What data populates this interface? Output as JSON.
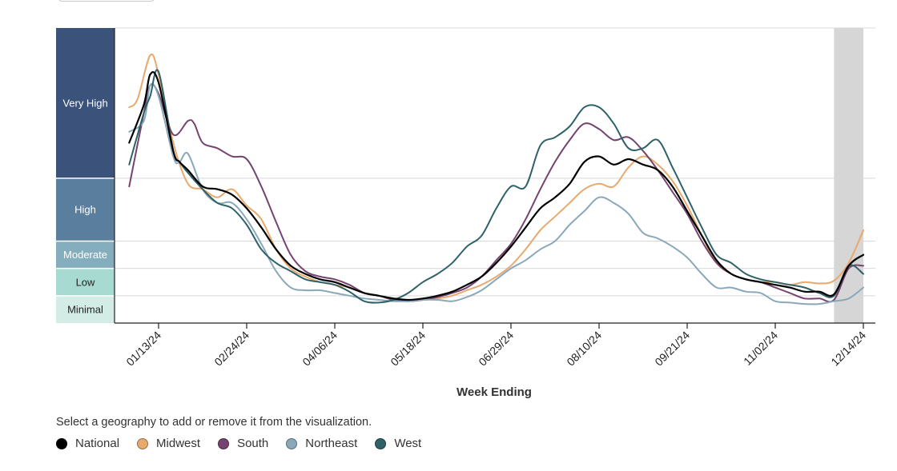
{
  "chart_data": {
    "type": "line",
    "xlabel": "Week Ending",
    "x_ticks": [
      "01/13/24",
      "02/24/24",
      "04/06/24",
      "05/18/24",
      "06/29/24",
      "08/10/24",
      "09/21/24",
      "11/02/24",
      "12/14/24"
    ],
    "x_range": [
      "12/23/23",
      "12/14/24"
    ],
    "levels": [
      {
        "name": "Very High",
        "from": 8,
        "to": 13.5,
        "color": "#3b537a",
        "text_color": "#ffffff"
      },
      {
        "name": "High",
        "from": 5.7,
        "to": 8,
        "color": "#5a7e9e",
        "text_color": "#ffffff"
      },
      {
        "name": "Moderate",
        "from": 4.7,
        "to": 5.7,
        "color": "#84adbd",
        "text_color": "#ffffff"
      },
      {
        "name": "Low",
        "from": 3.7,
        "to": 4.7,
        "color": "#a7dbd2",
        "text_color": "#222222"
      },
      {
        "name": "Minimal",
        "from": 2.7,
        "to": 3.7,
        "color": "#d3ede6",
        "text_color": "#222222"
      }
    ],
    "ylim": [
      2.7,
      13.5
    ],
    "projection_start": "11/30/24",
    "series": [
      {
        "name": "National",
        "color": "#000000",
        "points": [
          [
            "12/30/23",
            9.3
          ],
          [
            "01/06/24",
            10.7
          ],
          [
            "01/09/24",
            11.8
          ],
          [
            "01/13/24",
            11.5
          ],
          [
            "01/20/24",
            9.0
          ],
          [
            "01/23/24",
            8.6
          ],
          [
            "01/27/24",
            8.3
          ],
          [
            "02/03/24",
            7.7
          ],
          [
            "02/10/24",
            7.6
          ],
          [
            "02/17/24",
            7.4
          ],
          [
            "02/24/24",
            6.9
          ],
          [
            "03/02/24",
            6.2
          ],
          [
            "03/09/24",
            5.4
          ],
          [
            "03/16/24",
            4.8
          ],
          [
            "03/23/24",
            4.5
          ],
          [
            "03/30/24",
            4.3
          ],
          [
            "04/06/24",
            4.2
          ],
          [
            "04/13/24",
            4.0
          ],
          [
            "04/20/24",
            3.8
          ],
          [
            "04/27/24",
            3.7
          ],
          [
            "05/04/24",
            3.6
          ],
          [
            "05/11/24",
            3.55
          ],
          [
            "05/18/24",
            3.6
          ],
          [
            "05/25/24",
            3.7
          ],
          [
            "06/01/24",
            3.85
          ],
          [
            "06/08/24",
            4.1
          ],
          [
            "06/15/24",
            4.4
          ],
          [
            "06/22/24",
            4.9
          ],
          [
            "06/29/24",
            5.5
          ],
          [
            "07/06/24",
            6.2
          ],
          [
            "07/13/24",
            6.9
          ],
          [
            "07/20/24",
            7.3
          ],
          [
            "07/27/24",
            7.8
          ],
          [
            "08/03/24",
            8.6
          ],
          [
            "08/10/24",
            8.8
          ],
          [
            "08/17/24",
            8.5
          ],
          [
            "08/24/24",
            8.7
          ],
          [
            "08/31/24",
            8.5
          ],
          [
            "09/07/24",
            8.3
          ],
          [
            "09/14/24",
            7.7
          ],
          [
            "09/21/24",
            6.8
          ],
          [
            "09/28/24",
            5.9
          ],
          [
            "10/05/24",
            5.0
          ],
          [
            "10/12/24",
            4.5
          ],
          [
            "10/19/24",
            4.3
          ],
          [
            "10/26/24",
            4.2
          ],
          [
            "11/02/24",
            4.1
          ],
          [
            "11/09/24",
            4.0
          ],
          [
            "11/16/24",
            3.85
          ],
          [
            "11/23/24",
            3.85
          ],
          [
            "11/30/24",
            3.75
          ],
          [
            "12/07/24",
            4.8
          ],
          [
            "12/14/24",
            5.2
          ]
        ]
      },
      {
        "name": "Midwest",
        "color": "#e8a96e",
        "points": [
          [
            "12/30/23",
            10.6
          ],
          [
            "01/03/24",
            10.9
          ],
          [
            "01/09/24",
            12.5
          ],
          [
            "01/13/24",
            11.8
          ],
          [
            "01/20/24",
            9.3
          ],
          [
            "01/27/24",
            7.8
          ],
          [
            "02/03/24",
            7.6
          ],
          [
            "02/10/24",
            7.3
          ],
          [
            "02/17/24",
            7.6
          ],
          [
            "02/24/24",
            7.0
          ],
          [
            "03/02/24",
            6.5
          ],
          [
            "03/09/24",
            5.4
          ],
          [
            "03/16/24",
            4.7
          ],
          [
            "03/23/24",
            4.4
          ],
          [
            "03/30/24",
            4.2
          ],
          [
            "04/06/24",
            4.1
          ],
          [
            "04/13/24",
            4.0
          ],
          [
            "04/20/24",
            3.8
          ],
          [
            "04/27/24",
            3.7
          ],
          [
            "05/04/24",
            3.6
          ],
          [
            "05/11/24",
            3.55
          ],
          [
            "05/18/24",
            3.55
          ],
          [
            "05/25/24",
            3.6
          ],
          [
            "06/01/24",
            3.7
          ],
          [
            "06/08/24",
            3.9
          ],
          [
            "06/15/24",
            4.1
          ],
          [
            "06/22/24",
            4.4
          ],
          [
            "06/29/24",
            4.8
          ],
          [
            "07/06/24",
            5.4
          ],
          [
            "07/13/24",
            6.1
          ],
          [
            "07/20/24",
            6.6
          ],
          [
            "07/27/24",
            7.1
          ],
          [
            "08/03/24",
            7.6
          ],
          [
            "08/10/24",
            7.8
          ],
          [
            "08/17/24",
            7.7
          ],
          [
            "08/24/24",
            8.4
          ],
          [
            "08/31/24",
            8.8
          ],
          [
            "09/07/24",
            8.5
          ],
          [
            "09/14/24",
            7.9
          ],
          [
            "09/21/24",
            7.0
          ],
          [
            "09/28/24",
            5.9
          ],
          [
            "10/05/24",
            4.9
          ],
          [
            "10/12/24",
            4.5
          ],
          [
            "10/19/24",
            4.3
          ],
          [
            "10/26/24",
            4.2
          ],
          [
            "11/02/24",
            4.2
          ],
          [
            "11/09/24",
            4.1
          ],
          [
            "11/16/24",
            4.2
          ],
          [
            "11/23/24",
            4.15
          ],
          [
            "11/30/24",
            4.25
          ],
          [
            "12/07/24",
            4.9
          ],
          [
            "12/14/24",
            6.1
          ]
        ]
      },
      {
        "name": "South",
        "color": "#74436f",
        "points": [
          [
            "12/30/23",
            7.7
          ],
          [
            "01/06/24",
            10.4
          ],
          [
            "01/09/24",
            11.4
          ],
          [
            "01/13/24",
            11.1
          ],
          [
            "01/20/24",
            9.6
          ],
          [
            "01/27/24",
            10.1
          ],
          [
            "01/30/24",
            10.0
          ],
          [
            "02/03/24",
            9.3
          ],
          [
            "02/10/24",
            9.1
          ],
          [
            "02/17/24",
            8.8
          ],
          [
            "02/24/24",
            8.7
          ],
          [
            "03/02/24",
            7.7
          ],
          [
            "03/09/24",
            6.4
          ],
          [
            "03/16/24",
            5.2
          ],
          [
            "03/23/24",
            4.6
          ],
          [
            "03/30/24",
            4.4
          ],
          [
            "04/06/24",
            4.3
          ],
          [
            "04/13/24",
            4.1
          ],
          [
            "04/20/24",
            3.8
          ],
          [
            "04/27/24",
            3.7
          ],
          [
            "05/04/24",
            3.55
          ],
          [
            "05/11/24",
            3.5
          ],
          [
            "05/18/24",
            3.55
          ],
          [
            "05/25/24",
            3.65
          ],
          [
            "06/01/24",
            3.8
          ],
          [
            "06/08/24",
            4.0
          ],
          [
            "06/15/24",
            4.4
          ],
          [
            "06/22/24",
            5.0
          ],
          [
            "06/29/24",
            5.6
          ],
          [
            "07/06/24",
            6.5
          ],
          [
            "07/13/24",
            7.6
          ],
          [
            "07/20/24",
            8.6
          ],
          [
            "07/27/24",
            9.4
          ],
          [
            "08/03/24",
            10.0
          ],
          [
            "08/10/24",
            9.8
          ],
          [
            "08/17/24",
            9.4
          ],
          [
            "08/24/24",
            9.5
          ],
          [
            "08/31/24",
            9.0
          ],
          [
            "09/07/24",
            8.3
          ],
          [
            "09/14/24",
            7.5
          ],
          [
            "09/21/24",
            6.7
          ],
          [
            "09/28/24",
            5.7
          ],
          [
            "10/05/24",
            4.9
          ],
          [
            "10/12/24",
            4.5
          ],
          [
            "10/19/24",
            4.3
          ],
          [
            "10/26/24",
            4.2
          ],
          [
            "11/02/24",
            4.0
          ],
          [
            "11/09/24",
            3.8
          ],
          [
            "11/16/24",
            3.6
          ],
          [
            "11/23/24",
            3.6
          ],
          [
            "11/30/24",
            3.55
          ],
          [
            "12/07/24",
            4.7
          ],
          [
            "12/14/24",
            4.8
          ]
        ]
      },
      {
        "name": "Northeast",
        "color": "#89a8ba",
        "points": [
          [
            "12/30/23",
            9.7
          ],
          [
            "01/06/24",
            10.1
          ],
          [
            "01/09/24",
            11.4
          ],
          [
            "01/13/24",
            11.0
          ],
          [
            "01/20/24",
            8.8
          ],
          [
            "01/23/24",
            8.6
          ],
          [
            "01/27/24",
            8.9
          ],
          [
            "02/03/24",
            7.6
          ],
          [
            "02/10/24",
            7.1
          ],
          [
            "02/17/24",
            7.1
          ],
          [
            "02/24/24",
            6.5
          ],
          [
            "03/02/24",
            5.6
          ],
          [
            "03/09/24",
            4.6
          ],
          [
            "03/16/24",
            4.0
          ],
          [
            "03/23/24",
            3.9
          ],
          [
            "03/30/24",
            3.9
          ],
          [
            "04/06/24",
            3.8
          ],
          [
            "04/13/24",
            3.7
          ],
          [
            "04/20/24",
            3.6
          ],
          [
            "04/27/24",
            3.55
          ],
          [
            "05/04/24",
            3.5
          ],
          [
            "05/11/24",
            3.5
          ],
          [
            "05/18/24",
            3.55
          ],
          [
            "05/25/24",
            3.55
          ],
          [
            "06/01/24",
            3.5
          ],
          [
            "06/08/24",
            3.65
          ],
          [
            "06/15/24",
            3.9
          ],
          [
            "06/22/24",
            4.3
          ],
          [
            "06/29/24",
            4.7
          ],
          [
            "07/06/24",
            5.0
          ],
          [
            "07/13/24",
            5.4
          ],
          [
            "07/20/24",
            5.7
          ],
          [
            "07/27/24",
            6.3
          ],
          [
            "08/03/24",
            6.8
          ],
          [
            "08/10/24",
            7.3
          ],
          [
            "08/17/24",
            7.1
          ],
          [
            "08/24/24",
            6.7
          ],
          [
            "08/31/24",
            6.0
          ],
          [
            "09/07/24",
            5.8
          ],
          [
            "09/14/24",
            5.5
          ],
          [
            "09/21/24",
            5.1
          ],
          [
            "09/28/24",
            4.5
          ],
          [
            "10/05/24",
            4.0
          ],
          [
            "10/12/24",
            4.0
          ],
          [
            "10/19/24",
            3.85
          ],
          [
            "10/26/24",
            3.8
          ],
          [
            "11/02/24",
            3.5
          ],
          [
            "11/09/24",
            3.45
          ],
          [
            "11/16/24",
            3.4
          ],
          [
            "11/23/24",
            3.4
          ],
          [
            "11/30/24",
            3.5
          ],
          [
            "12/07/24",
            3.6
          ],
          [
            "12/14/24",
            4.0
          ]
        ]
      },
      {
        "name": "West",
        "color": "#2e6168",
        "points": [
          [
            "12/30/23",
            8.5
          ],
          [
            "01/06/24",
            10.4
          ],
          [
            "01/09/24",
            11.0
          ],
          [
            "01/13/24",
            11.9
          ],
          [
            "01/20/24",
            9.0
          ],
          [
            "01/23/24",
            8.6
          ],
          [
            "01/27/24",
            8.2
          ],
          [
            "02/03/24",
            7.6
          ],
          [
            "02/10/24",
            7.1
          ],
          [
            "02/17/24",
            6.9
          ],
          [
            "02/24/24",
            6.3
          ],
          [
            "03/02/24",
            5.4
          ],
          [
            "03/09/24",
            4.9
          ],
          [
            "03/16/24",
            4.6
          ],
          [
            "03/23/24",
            4.3
          ],
          [
            "03/30/24",
            4.2
          ],
          [
            "04/06/24",
            4.1
          ],
          [
            "04/13/24",
            3.85
          ],
          [
            "04/20/24",
            3.5
          ],
          [
            "04/27/24",
            3.45
          ],
          [
            "05/04/24",
            3.55
          ],
          [
            "05/11/24",
            3.8
          ],
          [
            "05/18/24",
            4.2
          ],
          [
            "05/25/24",
            4.5
          ],
          [
            "06/01/24",
            4.9
          ],
          [
            "06/08/24",
            5.5
          ],
          [
            "06/15/24",
            5.9
          ],
          [
            "06/22/24",
            6.9
          ],
          [
            "06/29/24",
            7.7
          ],
          [
            "07/06/24",
            7.7
          ],
          [
            "07/13/24",
            9.2
          ],
          [
            "07/20/24",
            9.5
          ],
          [
            "07/27/24",
            9.9
          ],
          [
            "08/03/24",
            10.6
          ],
          [
            "08/10/24",
            10.6
          ],
          [
            "08/17/24",
            10.0
          ],
          [
            "08/24/24",
            9.1
          ],
          [
            "08/31/24",
            9.1
          ],
          [
            "09/07/24",
            9.4
          ],
          [
            "09/14/24",
            8.4
          ],
          [
            "09/21/24",
            7.3
          ],
          [
            "09/28/24",
            6.2
          ],
          [
            "10/05/24",
            5.2
          ],
          [
            "10/12/24",
            4.9
          ],
          [
            "10/19/24",
            4.5
          ],
          [
            "10/26/24",
            4.3
          ],
          [
            "11/02/24",
            4.2
          ],
          [
            "11/09/24",
            4.1
          ],
          [
            "11/16/24",
            4.0
          ],
          [
            "11/23/24",
            3.8
          ],
          [
            "11/30/24",
            3.7
          ],
          [
            "12/07/24",
            4.8
          ],
          [
            "12/14/24",
            4.5
          ]
        ]
      }
    ]
  },
  "legend": {
    "instructions": "Select a geography to add or remove it from the visualization.",
    "items": [
      {
        "label": "National",
        "color": "#000000"
      },
      {
        "label": "Midwest",
        "color": "#e8a96e"
      },
      {
        "label": "South",
        "color": "#74436f"
      },
      {
        "label": "Northeast",
        "color": "#89a8ba"
      },
      {
        "label": "West",
        "color": "#2e6168"
      }
    ]
  }
}
